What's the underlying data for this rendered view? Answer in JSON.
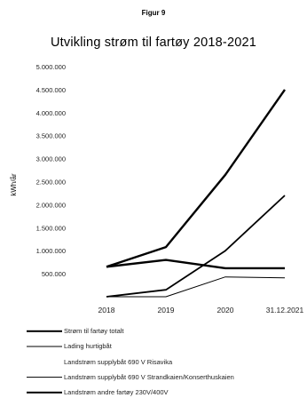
{
  "figure_label": "Figur 9",
  "chart_data": {
    "type": "line",
    "title": "Utvikling strøm til fartøy 2018-2021",
    "xlabel": "",
    "ylabel": "kWh/år",
    "categories": [
      "2018",
      "2019",
      "2020",
      "31.12.2021"
    ],
    "ylim": [
      0,
      5000000
    ],
    "yticks": [
      500000,
      1000000,
      1500000,
      2000000,
      2500000,
      3000000,
      3500000,
      4000000,
      4500000,
      5000000
    ],
    "ytick_labels": [
      "500.000",
      "1.000.000",
      "1.500.000",
      "2.000.000",
      "2.500.000",
      "3.000.000",
      "3.500.000",
      "4.000.000",
      "4.500.000",
      "5.000.000"
    ],
    "grid": false,
    "legend_position": "bottom",
    "series": [
      {
        "name": "Strøm til fartøy totalt",
        "values": [
          650000,
          1080000,
          2650000,
          4500000
        ],
        "color": "#000000",
        "width": 2.4
      },
      {
        "name": "Lading hurtigbåt",
        "values": [
          0,
          0,
          430000,
          410000
        ],
        "color": "#000000",
        "width": 1.0
      },
      {
        "name": "Landstrøm supplybåt 690 V Risavika",
        "values": [
          0,
          0,
          0,
          0
        ],
        "color": "#000000",
        "width": 0
      },
      {
        "name": "Landstrøm supplybåt 690 V Strandkaien/Konserthuskaien",
        "values": [
          0,
          150000,
          1000000,
          2200000
        ],
        "color": "#000000",
        "width": 1.8
      },
      {
        "name": "Landstrøm andre fartøy 230V/400V",
        "values": [
          650000,
          800000,
          620000,
          620000
        ],
        "color": "#000000",
        "width": 2.4
      }
    ]
  }
}
